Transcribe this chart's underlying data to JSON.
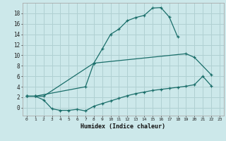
{
  "background_color": "#cce8ea",
  "grid_color": "#b0d0d2",
  "line_color": "#1a6e6a",
  "marker": "+",
  "marker_size": 3,
  "line_width": 0.9,
  "xlim": [
    -0.5,
    23.5
  ],
  "ylim": [
    -1.5,
    20.0
  ],
  "yticks": [
    0,
    2,
    4,
    6,
    8,
    10,
    12,
    14,
    16,
    18
  ],
  "xticks": [
    0,
    1,
    2,
    3,
    4,
    5,
    6,
    7,
    8,
    9,
    10,
    11,
    12,
    13,
    14,
    15,
    16,
    17,
    18,
    19,
    20,
    21,
    22,
    23
  ],
  "xlabel": "Humidex (Indice chaleur)",
  "curve1_x": [
    0,
    1,
    2,
    8,
    9,
    10,
    11,
    12,
    13,
    14,
    15,
    16,
    17,
    18
  ],
  "curve1_y": [
    2.2,
    2.2,
    2.2,
    8.5,
    11.2,
    14.0,
    15.0,
    16.6,
    17.2,
    17.6,
    19.0,
    19.1,
    17.3,
    13.5
  ],
  "curve2_x": [
    0,
    1,
    7,
    8,
    19,
    20,
    22
  ],
  "curve2_y": [
    2.2,
    2.2,
    4.0,
    8.5,
    10.3,
    9.6,
    6.3
  ],
  "curve3_x": [
    0,
    1,
    2,
    3,
    4,
    5,
    6,
    7,
    8,
    9,
    10,
    11,
    12,
    13,
    14,
    15,
    16,
    17,
    18,
    19,
    20,
    21,
    22
  ],
  "curve3_y": [
    2.2,
    2.2,
    1.5,
    -0.2,
    -0.5,
    -0.5,
    -0.3,
    -0.6,
    0.3,
    0.8,
    1.3,
    1.8,
    2.3,
    2.7,
    3.0,
    3.3,
    3.5,
    3.7,
    3.9,
    4.1,
    4.4,
    6.0,
    4.2
  ]
}
